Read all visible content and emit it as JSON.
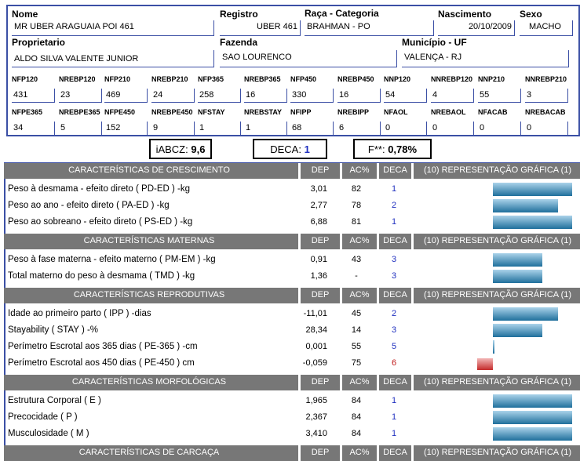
{
  "animal": {
    "labels": {
      "nome": "Nome",
      "registro": "Registro",
      "raca": "Raça - Categoria",
      "nascimento": "Nascimento",
      "sexo": "Sexo",
      "proprietario": "Proprietario",
      "fazenda": "Fazenda",
      "municipio": "Município - UF"
    },
    "nome": "MR UBER ARAGUAIA POI 461",
    "registro": "UBER 461",
    "raca": "BRAHMAN - PO",
    "nascimento": "20/10/2009",
    "sexo": "MACHO",
    "proprietario": "ALDO SILVA VALENTE JUNIOR",
    "fazenda": "SAO LOURENCO",
    "municipio": "VALENÇA - RJ"
  },
  "counts_row1": [
    {
      "label": "NFP120",
      "value": "431"
    },
    {
      "label": "NREBP120",
      "value": "23"
    },
    {
      "label": "NFP210",
      "value": "469"
    },
    {
      "label": "NREBP210",
      "value": "24"
    },
    {
      "label": "NFP365",
      "value": "258"
    },
    {
      "label": "NREBP365",
      "value": "16"
    },
    {
      "label": "NFP450",
      "value": "330"
    },
    {
      "label": "NREBP450",
      "value": "16"
    },
    {
      "label": "NNP120",
      "value": "54"
    },
    {
      "label": "NNREBP120",
      "value": "4"
    },
    {
      "label": "NNP210",
      "value": "55"
    },
    {
      "label": "NNREBP210",
      "value": "3"
    }
  ],
  "counts_row2": [
    {
      "label": "NFPE365",
      "value": "34"
    },
    {
      "label": "NREBPE365",
      "value": "5"
    },
    {
      "label": "NFPE450",
      "value": "152"
    },
    {
      "label": "NREBPE450",
      "value": "9"
    },
    {
      "label": "NFSTAY",
      "value": "1"
    },
    {
      "label": "NREBSTAY",
      "value": "1"
    },
    {
      "label": "NFIPP",
      "value": "68"
    },
    {
      "label": "NREBIPP",
      "value": "6"
    },
    {
      "label": "NFAOL",
      "value": "0"
    },
    {
      "label": "NREBAOL",
      "value": "0"
    },
    {
      "label": "NFACAB",
      "value": "0"
    },
    {
      "label": "NREBACAB",
      "value": "0"
    }
  ],
  "indices": {
    "iabcz_label": "iABCZ:",
    "iabcz_value": "9,6",
    "deca_label": "DECA:",
    "deca_value": "1",
    "f_label": "F**:",
    "f_value": "0,78%"
  },
  "columns": {
    "dep": "DEP",
    "ac": "AC%",
    "deca": "DECA",
    "grafico": "(10) REPRESENTAÇÃO GRÁFICA (1)"
  },
  "colors": {
    "deca_positive": "#1f2fbf",
    "deca_negative": "#c01818",
    "bar": "#1f6f9c",
    "bar_negative": "#c42b2b",
    "section": "#777777"
  },
  "sections": [
    {
      "title": "CARACTERÍSTICAS DE CRESCIMENTO",
      "rows": [
        {
          "label": "Peso à desmama - efeito direto ( PD-ED ) -kg",
          "dep": "3,01",
          "ac": "82",
          "deca": "1",
          "bar": 1.0
        },
        {
          "label": "Peso ao ano - efeito direto ( PA-ED ) -kg",
          "dep": "2,77",
          "ac": "78",
          "deca": "2",
          "bar": 0.82
        },
        {
          "label": "Peso ao sobreano - efeito direto ( PS-ED ) -kg",
          "dep": "6,88",
          "ac": "81",
          "deca": "1",
          "bar": 1.0
        }
      ]
    },
    {
      "title": "CARACTERÍSTICAS MATERNAS",
      "rows": [
        {
          "label": "Peso à fase materna - efeito materno ( PM-EM ) -kg",
          "dep": "0,91",
          "ac": "43",
          "deca": "3",
          "bar": 0.62
        },
        {
          "label": "Total materno do peso à desmama ( TMD ) -kg",
          "dep": "1,36",
          "ac": "-",
          "deca": "3",
          "bar": 0.62
        }
      ]
    },
    {
      "title": "CARACTERÍSTICAS REPRODUTIVAS",
      "rows": [
        {
          "label": "Idade ao primeiro parto ( IPP ) -dias",
          "dep": "-11,01",
          "ac": "45",
          "deca": "2",
          "bar": 0.82
        },
        {
          "label": "Stayability ( STAY ) -%",
          "dep": "28,34",
          "ac": "14",
          "deca": "3",
          "bar": 0.62
        },
        {
          "label": "Perímetro Escrotal aos 365 dias ( PE-365 ) -cm",
          "dep": "0,001",
          "ac": "55",
          "deca": "5",
          "bar": 0.02
        },
        {
          "label": "Perímetro Escrotal aos 450 dias ( PE-450 ) cm",
          "dep": "-0,059",
          "ac": "75",
          "deca": "6",
          "bar": -0.2
        }
      ]
    },
    {
      "title": "CARACTERÍSTICAS MORFOLÓGICAS",
      "rows": [
        {
          "label": "Estrutura Corporal ( E )",
          "dep": "1,965",
          "ac": "84",
          "deca": "1",
          "bar": 1.0
        },
        {
          "label": "Precocidade ( P )",
          "dep": "2,367",
          "ac": "84",
          "deca": "1",
          "bar": 1.0
        },
        {
          "label": "Musculosidade ( M )",
          "dep": "3,410",
          "ac": "84",
          "deca": "1",
          "bar": 1.0
        }
      ]
    },
    {
      "title": "CARACTERÍSTICAS DE CARCAÇA",
      "rows": []
    }
  ]
}
